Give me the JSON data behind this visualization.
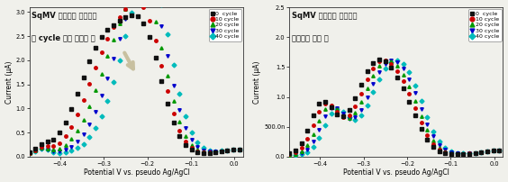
{
  "title_left_line1": "SqMV 바이러스 유전자가",
  "title_left_line2": "각 cycle 마다 증폭될 때",
  "title_right_line1": "SqMV 바이러스 유전자가",
  "title_right_line2": "존재하지 않을 때",
  "xlabel": "Potential V vs. pseudo Ag/AgCl",
  "ylabel": "Current (μA)",
  "cycles": [
    "0  cycle",
    "10 cycle",
    "20 cycle",
    "30 cycle",
    "40 cycle"
  ],
  "colors": [
    "#111111",
    "#cc0000",
    "#009900",
    "#0000cc",
    "#00bbbb"
  ],
  "markers": [
    "s",
    "o",
    "^",
    "v",
    "D"
  ],
  "xlim": [
    -0.47,
    0.02
  ],
  "ylim_left": [
    0.0,
    3.1
  ],
  "ylim_right": [
    0.0,
    2.5
  ],
  "yticks_left": [
    0.0,
    0.5,
    1.0,
    1.5,
    2.0,
    2.5,
    3.0
  ],
  "ytick_labels_left": [
    "0.0",
    "0.5",
    "1.0",
    "1.5",
    "2.0",
    "2.5",
    "3.0"
  ],
  "yticks_right": [
    0.0,
    0.5,
    1.0,
    1.5,
    2.0,
    2.5
  ],
  "ytick_labels_right": [
    "0.0",
    "500.0n",
    "1.0",
    "1.5",
    "2.0",
    "2.5"
  ],
  "xticks": [
    -0.4,
    -0.3,
    -0.2,
    -0.1,
    0.0
  ],
  "background_color": "#f0f0eb",
  "n_cycles": 5
}
